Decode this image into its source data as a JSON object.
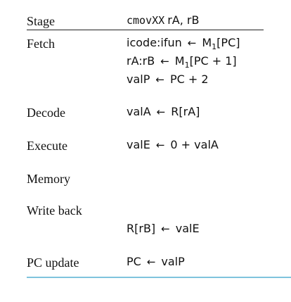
{
  "header": {
    "stage_label": "Stage",
    "instr_mono": "cmovXX",
    "instr_args": "rA, rB"
  },
  "rows": {
    "fetch": {
      "stage": "Fetch",
      "l1_lhs": "icode:ifun",
      "l1_rhs_M": "M",
      "l1_rhs_sub": "1",
      "l1_rhs_arg": "[PC]",
      "l2_lhs": "rA:rB",
      "l2_rhs_M": "M",
      "l2_rhs_sub": "1",
      "l2_rhs_arg": "[PC + 1]",
      "l3_lhs": "valP",
      "l3_rhs": "PC + 2"
    },
    "decode": {
      "stage": "Decode",
      "lhs": "valA",
      "rhs": "R[rA]"
    },
    "execute": {
      "stage": "Execute",
      "lhs": "valE",
      "rhs": "0 + valA"
    },
    "memory": {
      "stage": "Memory"
    },
    "writeback": {
      "stage": "Write back",
      "lhs": "R[rB]",
      "rhs": "valE"
    },
    "pcupdate": {
      "stage": "PC update",
      "lhs": "PC",
      "rhs": "valP"
    }
  },
  "arrow": "←"
}
